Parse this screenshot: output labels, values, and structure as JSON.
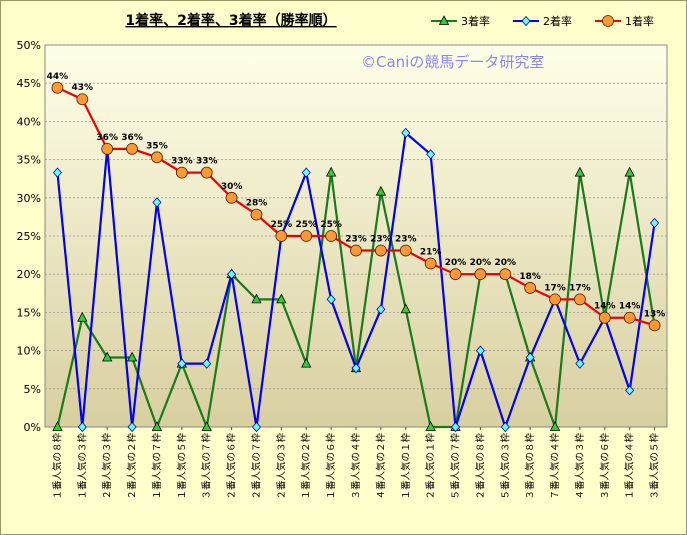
{
  "chart_data": {
    "type": "line",
    "title": "1着率、2着率、3着率（勝率順）",
    "watermark": "©Caniの競馬データ研究室",
    "ylim": [
      0,
      50
    ],
    "y_ticks": [
      "0%",
      "5%",
      "10%",
      "15%",
      "20%",
      "25%",
      "30%",
      "35%",
      "40%",
      "45%",
      "50%"
    ],
    "legend_position": "top-right",
    "grid": true,
    "categories": [
      "１番人気の８枠",
      "１番人気の３枠",
      "２番人気の３枠",
      "２番人気の２枠",
      "１番人気の７枠",
      "１番人気の５枠",
      "３番人気の７枠",
      "２番人気の６枠",
      "２番人気の７枠",
      "２番人気の３枠",
      "１番人気の２枠",
      "１番人気の６枠",
      "３番人気の４枠",
      "４番人気の２枠",
      "１番人気の１枠",
      "２番人気の１枠",
      "５番人気の７枠",
      "２番人気の８枠",
      "５番人気の３枠",
      "３番人気の８枠",
      "７番人気の４枠",
      "４番人気の３枠",
      "３番人気の６枠",
      "１番人気の４枠",
      "３番人気の５枠"
    ],
    "series": [
      {
        "name": "3着率",
        "color": "#1a7a1a",
        "marker": "triangle",
        "values": [
          0,
          14.3,
          9.1,
          9.1,
          0,
          8.3,
          0,
          20,
          16.7,
          16.7,
          8.3,
          33.3,
          7.7,
          30.8,
          15.4,
          0,
          0,
          20,
          20,
          9.1,
          0,
          33.3,
          14.3,
          33.3,
          13.3
        ]
      },
      {
        "name": "2着率",
        "color": "#0000ee",
        "marker": "diamond",
        "values": [
          33.3,
          0,
          36.4,
          0,
          29.4,
          8.3,
          8.3,
          20,
          0,
          25,
          33.3,
          16.7,
          7.7,
          15.4,
          38.5,
          35.7,
          0,
          10,
          0,
          9.1,
          16.7,
          8.3,
          14.3,
          4.8,
          26.7
        ]
      },
      {
        "name": "1着率",
        "color": "#ee0000",
        "marker": "circle",
        "labels": [
          "44%",
          "43%",
          "36%",
          "36%",
          "35%",
          "33%",
          "33%",
          "30%",
          "28%",
          "25%",
          "25%",
          "25%",
          "23%",
          "23%",
          "23%",
          "21%",
          "20%",
          "20%",
          "20%",
          "18%",
          "17%",
          "17%",
          "14%",
          "14%",
          "13%"
        ],
        "values": [
          44.4,
          42.9,
          36.4,
          36.4,
          35.3,
          33.3,
          33.3,
          30,
          27.8,
          25,
          25,
          25,
          23.1,
          23.1,
          23.1,
          21.4,
          20,
          20,
          20,
          18.2,
          16.7,
          16.7,
          14.3,
          14.3,
          13.3
        ]
      }
    ]
  }
}
